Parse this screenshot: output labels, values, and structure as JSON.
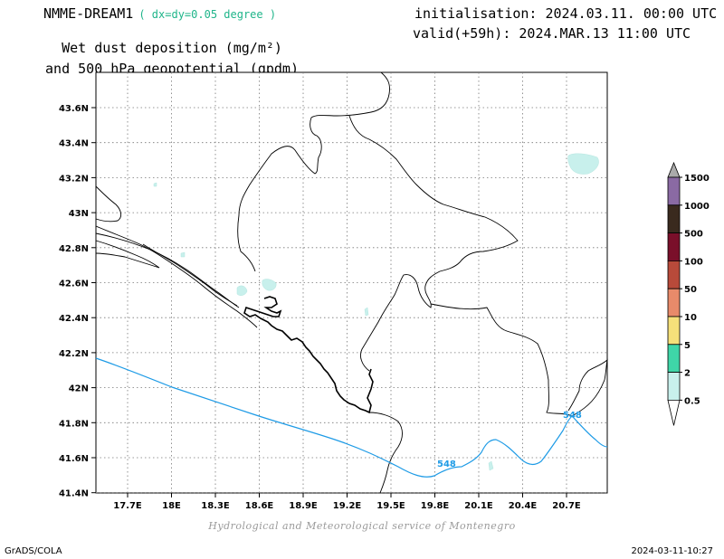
{
  "header": {
    "model": "NMME-DREAM1",
    "resolution": "( dx=dy=0.05 degree )",
    "variable_line1": "Wet dust deposition (mg/m²)",
    "variable_line2": "and 500 hPa geopotential (gpdm)",
    "initialisation": "initialisation: 2024.03.11. 00:00 UTC",
    "valid": "valid(+59h): 2024.MAR.13 11:00 UTC"
  },
  "credit": "Hydrological and Meteorological service of Montenegro",
  "footer": {
    "left": "GrADS/COLA",
    "right": "2024-03-11-10:27"
  },
  "map": {
    "lon_ticks": [
      "17.7E",
      "18E",
      "18.3E",
      "18.6E",
      "18.9E",
      "19.2E",
      "19.5E",
      "19.8E",
      "20.1E",
      "20.4E",
      "20.7E"
    ],
    "lat_ticks": [
      "43.6N",
      "43.4N",
      "43.2N",
      "43N",
      "42.8N",
      "42.6N",
      "42.4N",
      "42.2N",
      "42N",
      "41.8N",
      "41.6N",
      "41.4N"
    ],
    "contour_label": "548",
    "contour_color": "#1e9be6"
  },
  "colorbar": {
    "labels": [
      "1500",
      "1000",
      "500",
      "100",
      "50",
      "10",
      "5",
      "2",
      "0.5"
    ],
    "colors": [
      "#8a6aa3",
      "#3a2a1e",
      "#7a0f2a",
      "#b84a3a",
      "#e88a6a",
      "#f5e07a",
      "#3fd6a8",
      "#c8f0ec"
    ]
  }
}
